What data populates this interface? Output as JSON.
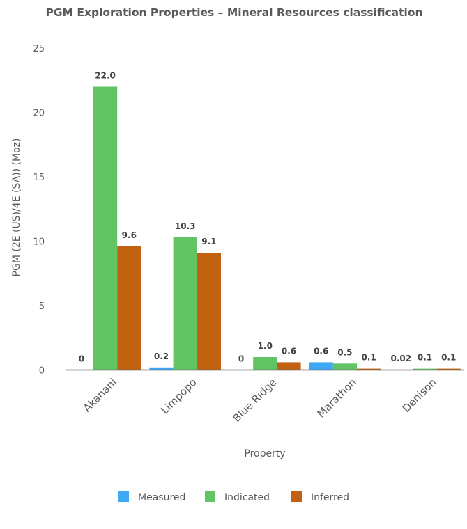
{
  "chart_data": {
    "type": "bar",
    "title": "PGM Exploration Properties – Mineral Resources classification",
    "xlabel": "Property",
    "ylabel": "PGM (2E (US)/4E (SA)) (Moz)",
    "categories": [
      "Akanani",
      "Limpopo",
      "Blue Ridge",
      "Marathon",
      "Denison"
    ],
    "ylim": [
      0,
      25
    ],
    "yticks": [
      0,
      5,
      10,
      15,
      20,
      25
    ],
    "grid": false,
    "legend_position": "bottom",
    "series": [
      {
        "name": "Measured",
        "color": "#3fa9f5",
        "values": [
          0,
          0.2,
          0,
          0.6,
          0.02
        ],
        "labels": [
          "0",
          "0.2",
          "0",
          "0.6",
          "0.02"
        ]
      },
      {
        "name": "Indicated",
        "color": "#62c462",
        "values": [
          22.0,
          10.3,
          1.0,
          0.5,
          0.1
        ],
        "labels": [
          "22.0",
          "10.3",
          "1.0",
          "0.5",
          "0.1"
        ]
      },
      {
        "name": "Inferred",
        "color": "#c0620f",
        "values": [
          9.6,
          9.1,
          0.6,
          0.1,
          0.1
        ],
        "labels": [
          "9.6",
          "9.1",
          "0.6",
          "0.1",
          "0.1"
        ]
      }
    ]
  }
}
